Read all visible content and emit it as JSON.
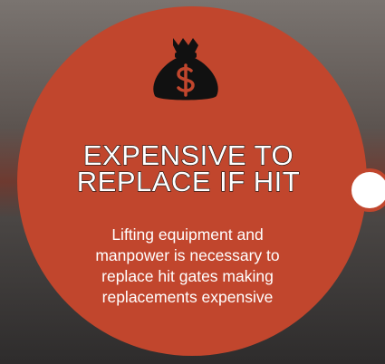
{
  "title": {
    "lines": [
      "EXPENSIVE TO",
      "REPLACE IF HIT"
    ]
  },
  "body": {
    "lines": [
      "Lifting equipment and",
      "manpower is necessary to",
      "replace hit gates making",
      "replacements expensive"
    ]
  }
}
